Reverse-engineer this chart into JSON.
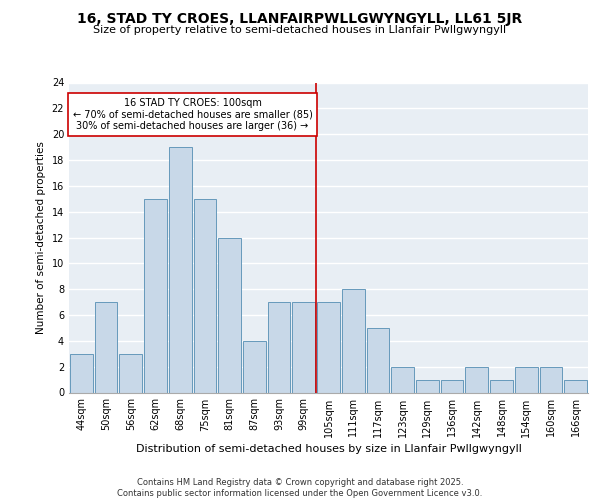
{
  "title": "16, STAD TY CROES, LLANFAIRPWLLGWYNGYLL, LL61 5JR",
  "subtitle": "Size of property relative to semi-detached houses in Llanfair Pwllgwyngyll",
  "xlabel": "Distribution of semi-detached houses by size in Llanfair Pwllgwyngyll",
  "ylabel": "Number of semi-detached properties",
  "categories": [
    "44sqm",
    "50sqm",
    "56sqm",
    "62sqm",
    "68sqm",
    "75sqm",
    "81sqm",
    "87sqm",
    "93sqm",
    "99sqm",
    "105sqm",
    "111sqm",
    "117sqm",
    "123sqm",
    "129sqm",
    "136sqm",
    "142sqm",
    "148sqm",
    "154sqm",
    "160sqm",
    "166sqm"
  ],
  "values": [
    3,
    7,
    3,
    15,
    19,
    15,
    12,
    4,
    7,
    7,
    7,
    8,
    5,
    2,
    1,
    1,
    2,
    1,
    2,
    2,
    1
  ],
  "bar_color": "#c8d8e8",
  "bar_edge_color": "#6699bb",
  "background_color": "#e8eef4",
  "grid_color": "#ffffff",
  "vline_color": "#cc0000",
  "annotation_text": "16 STAD TY CROES: 100sqm\n← 70% of semi-detached houses are smaller (85)\n30% of semi-detached houses are larger (36) →",
  "annotation_box_color": "#cc0000",
  "ylim": [
    0,
    24
  ],
  "yticks": [
    0,
    2,
    4,
    6,
    8,
    10,
    12,
    14,
    16,
    18,
    20,
    22,
    24
  ],
  "footer": "Contains HM Land Registry data © Crown copyright and database right 2025.\nContains public sector information licensed under the Open Government Licence v3.0.",
  "title_fontsize": 10,
  "subtitle_fontsize": 8,
  "xlabel_fontsize": 8,
  "ylabel_fontsize": 7.5,
  "tick_fontsize": 7,
  "annotation_fontsize": 7,
  "footer_fontsize": 6
}
